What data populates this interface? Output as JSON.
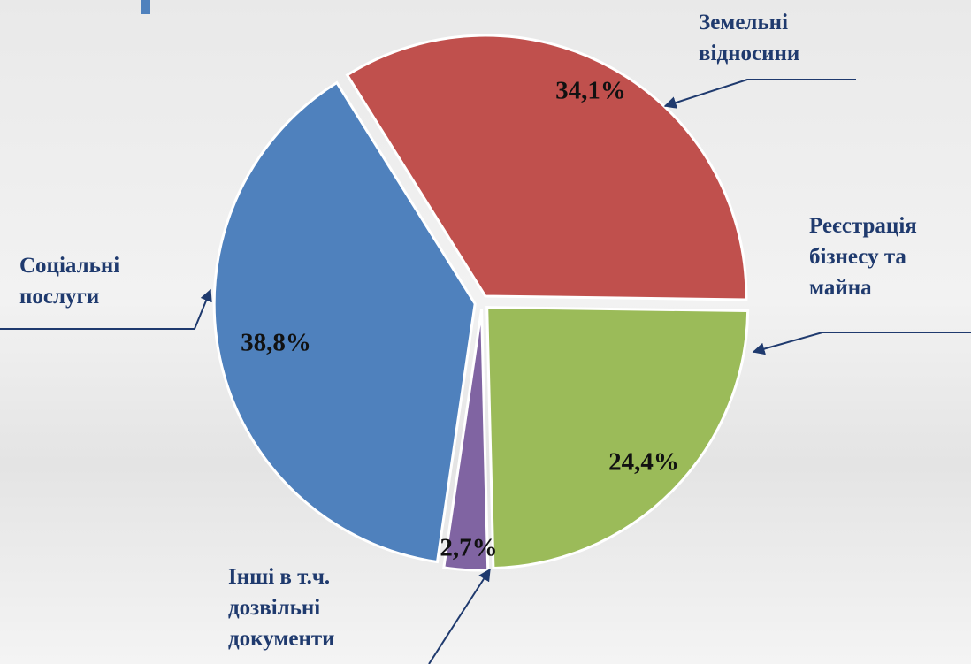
{
  "chart_data": {
    "type": "pie",
    "categories": [
      "Земельні відносини",
      "Реєстрація бізнесу та майна",
      "Інші в т.ч. дозвільні документи",
      "Соціальні послуги"
    ],
    "values": [
      34.1,
      24.4,
      2.7,
      38.8
    ],
    "value_labels": [
      "34,1%",
      "24,4%",
      "2,7%",
      "38,8%"
    ],
    "colors": [
      "#c0504d",
      "#9bbb59",
      "#8064a2",
      "#4f81bd"
    ]
  }
}
